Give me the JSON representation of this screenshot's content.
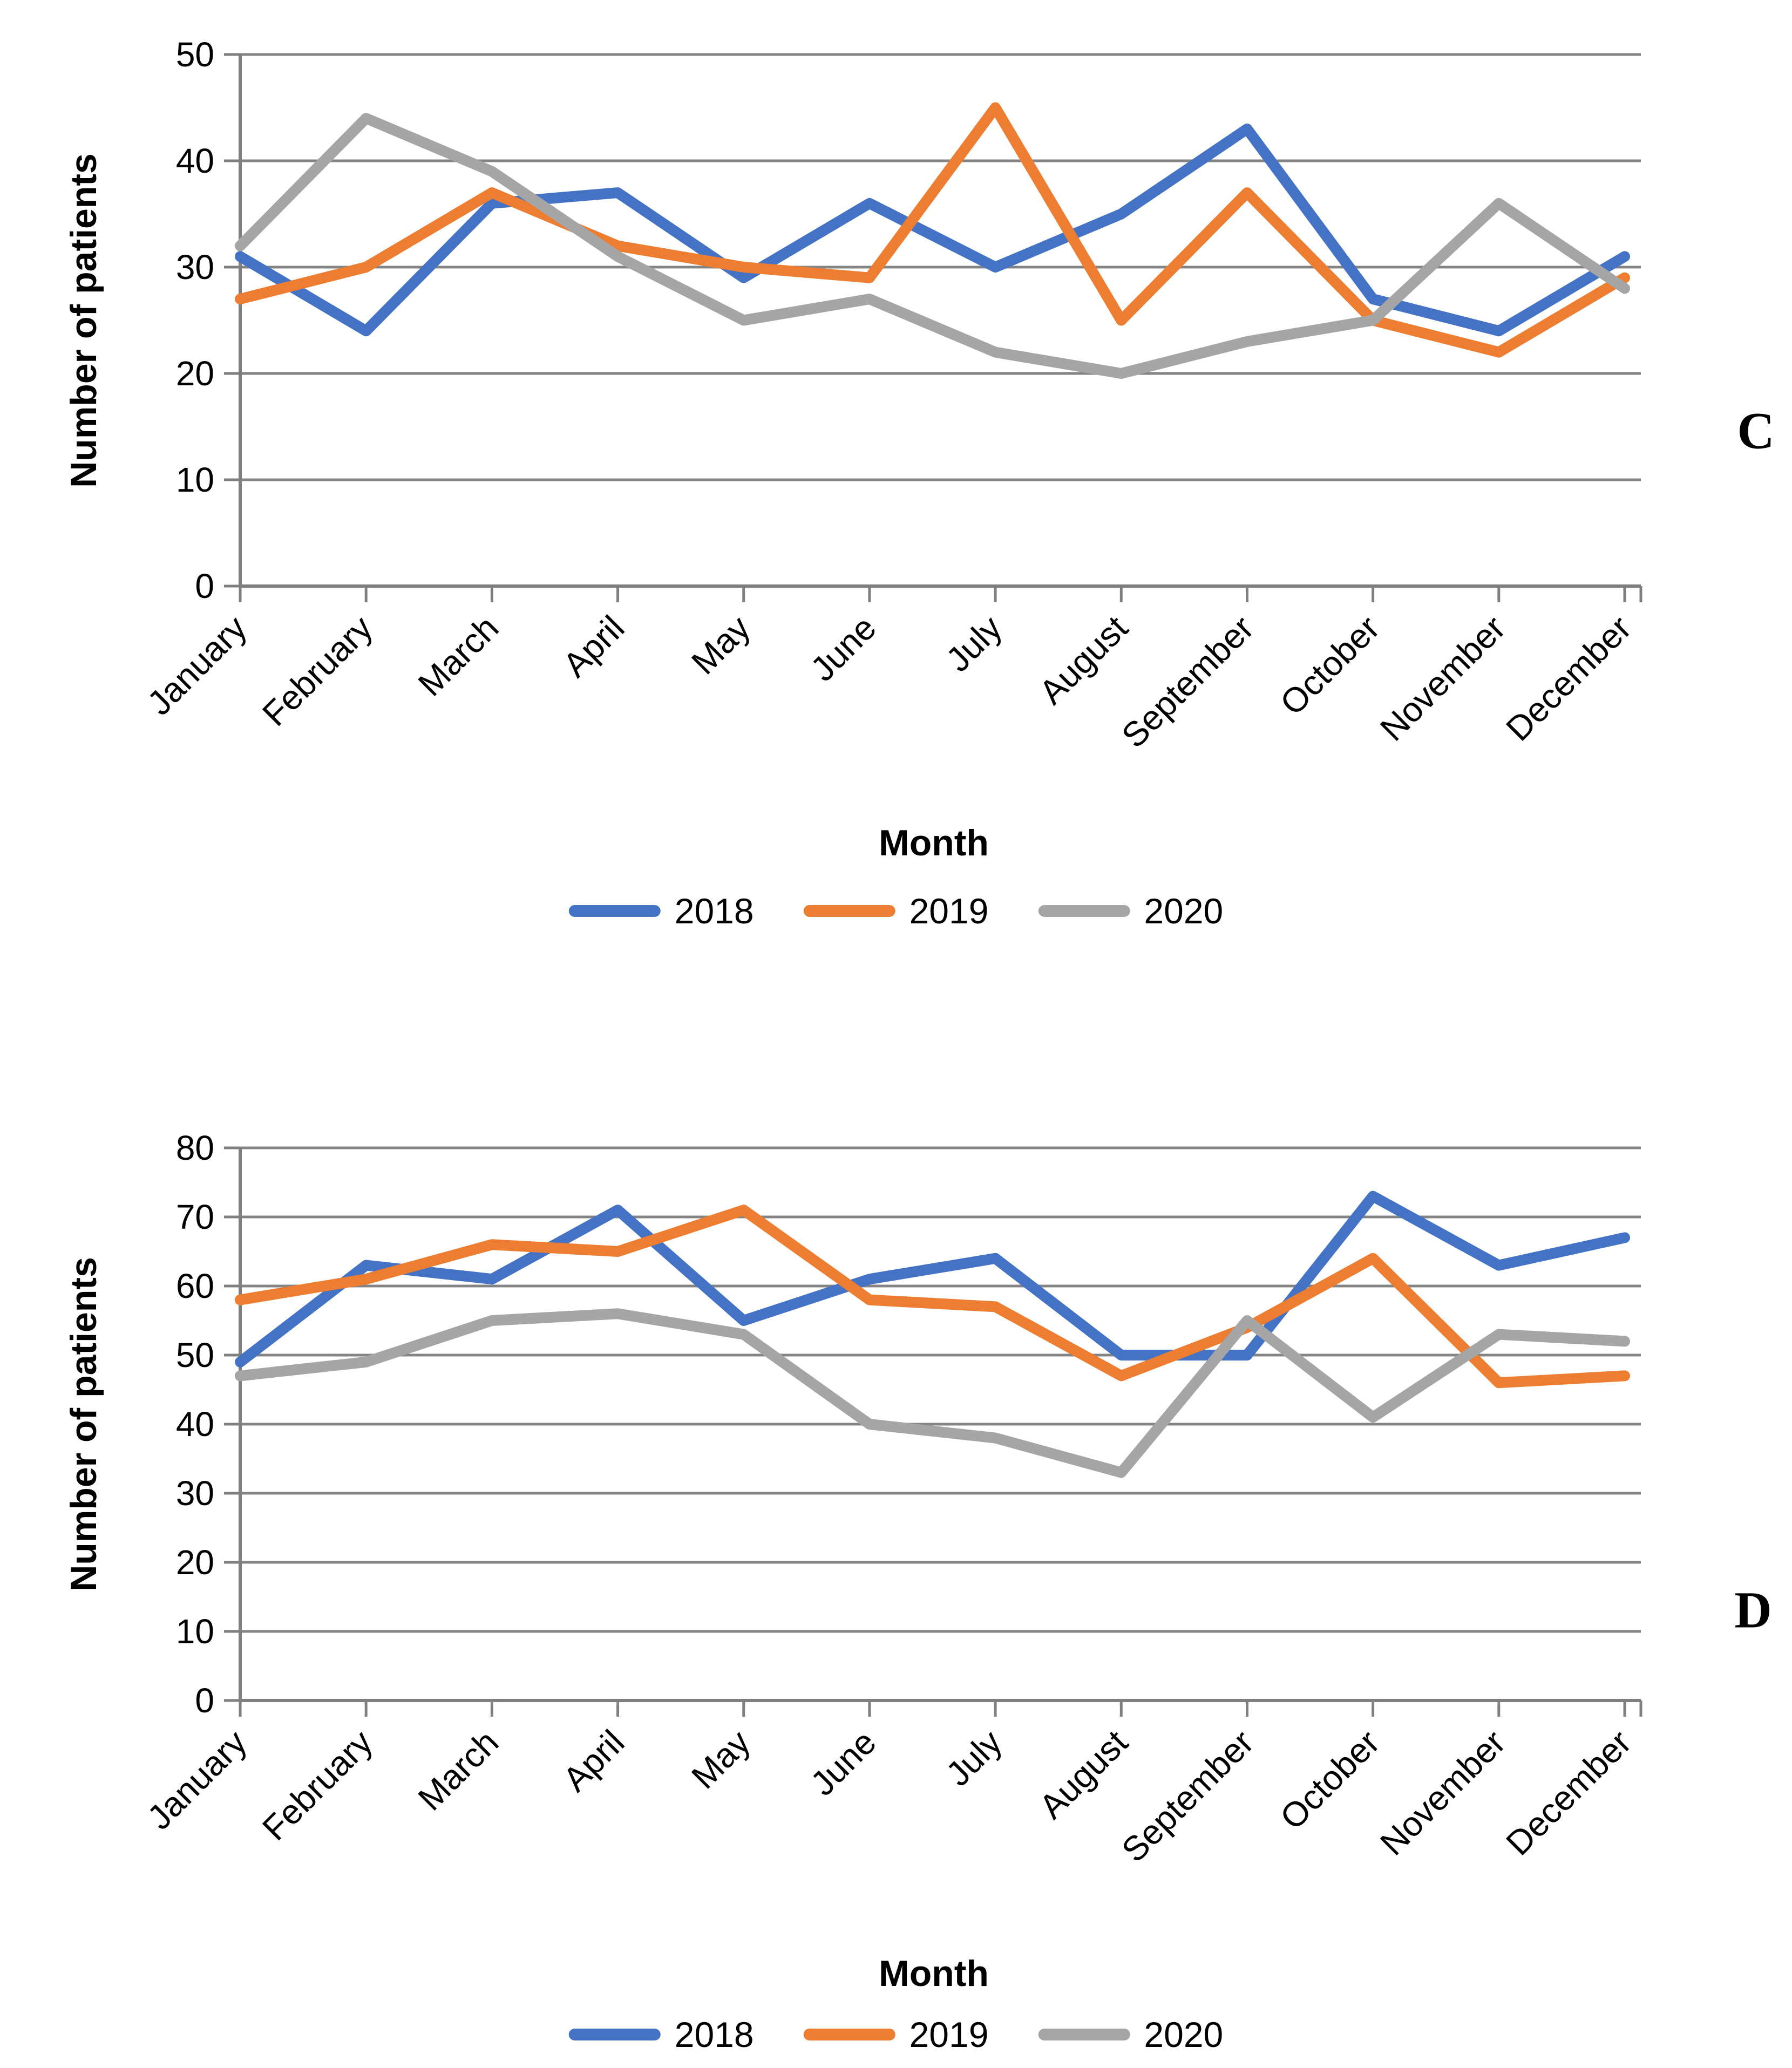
{
  "chart_data": [
    {
      "type": "line",
      "panel_label": "C",
      "xlabel": "Month",
      "ylabel": "Number of patients",
      "ylim": [
        0,
        50
      ],
      "ytick_step": 10,
      "grid": "horizontal",
      "legend_position": "bottom",
      "categories": [
        "January",
        "February",
        "March",
        "April",
        "May",
        "June",
        "July",
        "August",
        "September",
        "October",
        "November",
        "December"
      ],
      "series": [
        {
          "name": "2018",
          "color": "#4472C4",
          "values": [
            31,
            24,
            36,
            37,
            29,
            36,
            30,
            35,
            43,
            27,
            24,
            31
          ]
        },
        {
          "name": "2019",
          "color": "#ED7D31",
          "values": [
            27,
            30,
            37,
            32,
            30,
            29,
            45,
            25,
            37,
            25,
            22,
            29
          ]
        },
        {
          "name": "2020",
          "color": "#A5A5A5",
          "values": [
            32,
            44,
            39,
            31,
            25,
            27,
            22,
            20,
            23,
            25,
            36,
            28
          ]
        }
      ]
    },
    {
      "type": "line",
      "panel_label": "D",
      "xlabel": "Month",
      "ylabel": "Number of patients",
      "ylim": [
        0,
        80
      ],
      "ytick_step": 10,
      "grid": "horizontal",
      "legend_position": "bottom",
      "categories": [
        "January",
        "February",
        "March",
        "April",
        "May",
        "June",
        "July",
        "August",
        "September",
        "October",
        "November",
        "December"
      ],
      "series": [
        {
          "name": "2018",
          "color": "#4472C4",
          "values": [
            49,
            63,
            61,
            71,
            55,
            61,
            64,
            50,
            50,
            73,
            63,
            67
          ]
        },
        {
          "name": "2019",
          "color": "#ED7D31",
          "values": [
            58,
            61,
            66,
            65,
            71,
            58,
            57,
            47,
            54,
            64,
            46,
            47
          ]
        },
        {
          "name": "2020",
          "color": "#A5A5A5",
          "values": [
            47,
            49,
            55,
            56,
            53,
            40,
            38,
            33,
            55,
            41,
            53,
            52
          ]
        }
      ]
    }
  ]
}
